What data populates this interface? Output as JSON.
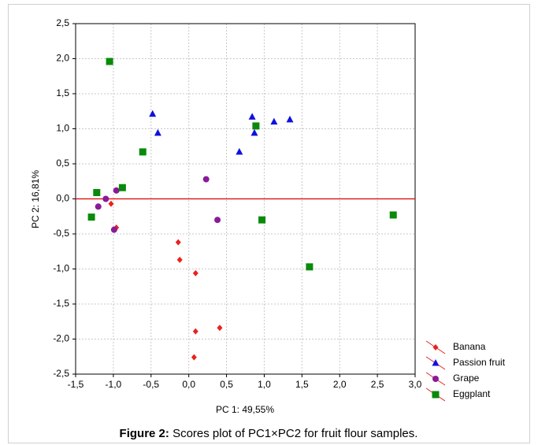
{
  "chart_data": {
    "type": "scatter",
    "x_label": "PC 1: 49,55%",
    "y_label": "PC 2: 16,81%",
    "caption": {
      "label": "Figure 2:",
      "text": "Scores plot of PC1×PC2 for fruit flour samples."
    },
    "xlim": [
      -1.5,
      3.0
    ],
    "ylim": [
      -2.5,
      2.5
    ],
    "xticks": [
      {
        "value": -1.5,
        "label": "-1,5"
      },
      {
        "value": -1.0,
        "label": "-1,0"
      },
      {
        "value": -0.5,
        "label": "-0,5"
      },
      {
        "value": 0,
        "label": "0,0"
      },
      {
        "value": 0.5,
        "label": "0,5"
      },
      {
        "value": 1.0,
        "label": "1,0"
      },
      {
        "value": 1.5,
        "label": "1,5"
      },
      {
        "value": 2.0,
        "label": "2,0"
      },
      {
        "value": 2.5,
        "label": "2,5"
      },
      {
        "value": 3.0,
        "label": "3,0"
      }
    ],
    "yticks": [
      {
        "value": -2.5,
        "label": "-2,5"
      },
      {
        "value": -2.0,
        "label": "-2,0"
      },
      {
        "value": -1.5,
        "label": "-1,5"
      },
      {
        "value": -1.0,
        "label": "-1,0"
      },
      {
        "value": -0.5,
        "label": "-0,5"
      },
      {
        "value": 0,
        "label": "0,0"
      },
      {
        "value": 0.5,
        "label": "0,5"
      },
      {
        "value": 1.0,
        "label": "1,0"
      },
      {
        "value": 1.5,
        "label": "1,5"
      },
      {
        "value": 2.0,
        "label": "2,0"
      },
      {
        "value": 2.5,
        "label": "2,5"
      }
    ],
    "grid": true,
    "reference_line": {
      "y": 0,
      "color": "#e00000"
    },
    "legend": "outside-bottom-right",
    "series": [
      {
        "name": "Banana",
        "color": "#e8231f",
        "marker": "diamond",
        "x": [
          -0.14,
          -0.12,
          0.09,
          0.09,
          0.41,
          0.07,
          -1.03,
          -0.96
        ],
        "y": [
          -0.62,
          -0.87,
          -1.06,
          -1.89,
          -1.84,
          -2.26,
          -0.07,
          -0.41
        ]
      },
      {
        "name": "Passion fruit",
        "color": "#1010e0",
        "marker": "triangle",
        "x": [
          -0.48,
          -0.41,
          0.84,
          0.87,
          0.67,
          1.13,
          1.34
        ],
        "y": [
          1.21,
          0.94,
          1.17,
          0.94,
          0.67,
          1.1,
          1.13
        ]
      },
      {
        "name": "Grape",
        "color": "#8a1a9a",
        "marker": "circle",
        "x": [
          0.23,
          0.38,
          -0.96,
          -1.1,
          -1.2,
          -0.99
        ],
        "y": [
          0.28,
          -0.3,
          0.12,
          0.0,
          -0.11,
          -0.44
        ]
      },
      {
        "name": "Eggplant",
        "color": "#0a8a0a",
        "marker": "square",
        "x": [
          -1.05,
          -0.61,
          -1.22,
          -0.88,
          -1.29,
          0.89,
          0.97,
          1.6,
          2.71
        ],
        "y": [
          1.96,
          0.67,
          0.09,
          0.16,
          -0.26,
          1.04,
          -0.3,
          -0.97,
          -0.23
        ]
      }
    ]
  }
}
